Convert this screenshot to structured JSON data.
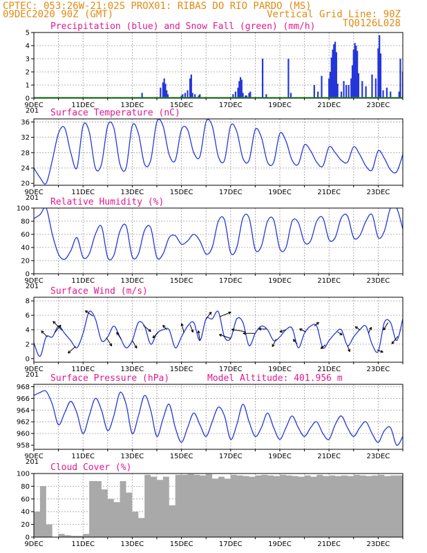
{
  "header": {
    "line1_left": "CPTEC:  053:26W-21:02S  PROX01: RIBAS DO RIO PARDO (MS)",
    "line2_left": "09DEC2020 90Z (GMT)",
    "line2_right": "Vertical Grid Line: 90Z",
    "line3_right": "TQ0126L028"
  },
  "colors": {
    "header": "#e08a14",
    "title": "#e0198c",
    "line": "#2536d8",
    "cloud": "#a9a9a9",
    "snow": "#22aa22"
  },
  "x_axis": {
    "start_day": 9,
    "end_day": 24,
    "labels": [
      "9DEC",
      "11DEC",
      "13DEC",
      "15DEC",
      "17DEC",
      "19DEC",
      "21DEC",
      "23DEC"
    ],
    "cutoff_label": "201"
  },
  "chart_data": [
    {
      "id": "precip",
      "type": "bar",
      "title": "Precipitation (blue) and Snow Fall (green) (mm/h)",
      "ylim": [
        0,
        5
      ],
      "yticks": [
        0,
        1,
        2,
        3,
        4,
        5
      ],
      "series": [
        {
          "name": "Precipitation",
          "values": [
            [
              13.4,
              0.4
            ],
            [
              14.15,
              0.8
            ],
            [
              14.25,
              1.2
            ],
            [
              14.3,
              1.5
            ],
            [
              14.35,
              1.1
            ],
            [
              14.4,
              0.6
            ],
            [
              14.45,
              0.3
            ],
            [
              15.0,
              0.2
            ],
            [
              15.05,
              0.3
            ],
            [
              15.15,
              0.4
            ],
            [
              15.25,
              0.6
            ],
            [
              15.35,
              1.5
            ],
            [
              15.4,
              1.8
            ],
            [
              15.45,
              0.4
            ],
            [
              15.55,
              0.3
            ],
            [
              15.7,
              0.2
            ],
            [
              15.75,
              0.3
            ],
            [
              17.1,
              0.3
            ],
            [
              17.2,
              0.5
            ],
            [
              17.3,
              0.8
            ],
            [
              17.35,
              1.3
            ],
            [
              17.4,
              1.6
            ],
            [
              17.45,
              1.4
            ],
            [
              17.5,
              0.4
            ],
            [
              17.6,
              0.2
            ],
            [
              17.65,
              0.2
            ],
            [
              17.75,
              0.4
            ],
            [
              17.8,
              0.5
            ],
            [
              18.3,
              3.0
            ],
            [
              18.45,
              0.3
            ],
            [
              19.35,
              3.0
            ],
            [
              19.45,
              0.4
            ],
            [
              20.4,
              1.0
            ],
            [
              20.55,
              0.5
            ],
            [
              20.7,
              1.7
            ],
            [
              21.0,
              1.5
            ],
            [
              21.05,
              2.0
            ],
            [
              21.1,
              3.1
            ],
            [
              21.15,
              3.7
            ],
            [
              21.2,
              4.1
            ],
            [
              21.25,
              4.3
            ],
            [
              21.3,
              3.5
            ],
            [
              21.35,
              1.1
            ],
            [
              21.5,
              0.5
            ],
            [
              21.6,
              1.3
            ],
            [
              21.7,
              1.0
            ],
            [
              21.8,
              1.0
            ],
            [
              21.9,
              1.5
            ],
            [
              21.95,
              2.5
            ],
            [
              22.0,
              3.7
            ],
            [
              22.05,
              4.2
            ],
            [
              22.1,
              4.0
            ],
            [
              22.15,
              3.6
            ],
            [
              22.2,
              1.9
            ],
            [
              22.35,
              1.3
            ],
            [
              22.5,
              0.9
            ],
            [
              22.75,
              1.8
            ],
            [
              22.9,
              1.5
            ],
            [
              23.0,
              3.8
            ],
            [
              23.05,
              4.8
            ],
            [
              23.1,
              3.4
            ],
            [
              23.2,
              0.6
            ],
            [
              23.35,
              0.8
            ],
            [
              23.5,
              0.5
            ],
            [
              23.85,
              0.5
            ],
            [
              23.9,
              3.0
            ],
            [
              24.0,
              2.0
            ],
            [
              24.05,
              0.8
            ]
          ]
        },
        {
          "name": "Snow Fall",
          "values": []
        }
      ]
    },
    {
      "id": "temp",
      "type": "line",
      "title": "Surface Temperature (nC)",
      "ylim": [
        19.5,
        36.8
      ],
      "yticks": [
        20,
        24,
        28,
        32,
        36
      ],
      "x": [
        9.0,
        9.25,
        9.5,
        9.75,
        10.0,
        10.25,
        10.5,
        10.75,
        11.0,
        11.25,
        11.5,
        11.75,
        12.0,
        12.25,
        12.5,
        12.75,
        13.0,
        13.25,
        13.5,
        13.75,
        14.0,
        14.25,
        14.5,
        14.75,
        15.0,
        15.25,
        15.5,
        15.75,
        16.0,
        16.25,
        16.5,
        16.75,
        17.0,
        17.25,
        17.5,
        17.75,
        18.0,
        18.25,
        18.5,
        18.75,
        19.0,
        19.25,
        19.5,
        19.75,
        20.0,
        20.25,
        20.5,
        20.75,
        21.0,
        21.25,
        21.5,
        21.75,
        22.0,
        22.25,
        22.5,
        22.75,
        23.0,
        23.25,
        23.5,
        23.75,
        24.0
      ],
      "values": [
        24.0,
        21.5,
        20.0,
        26.0,
        33.0,
        34.5,
        28.0,
        24.0,
        35.0,
        33.5,
        24.0,
        25.0,
        35.0,
        34.5,
        25.0,
        24.0,
        35.0,
        33.0,
        25.0,
        26.0,
        36.0,
        35.0,
        27.5,
        26.0,
        34.0,
        34.0,
        28.0,
        27.0,
        36.0,
        35.0,
        27.0,
        26.0,
        35.0,
        33.5,
        26.5,
        26.0,
        34.0,
        32.0,
        25.5,
        25.5,
        33.0,
        31.0,
        26.0,
        25.0,
        30.0,
        28.5,
        25.5,
        24.5,
        29.5,
        28.0,
        26.0,
        25.5,
        29.5,
        27.5,
        24.5,
        23.5,
        28.5,
        26.5,
        23.5,
        23.0,
        27.5
      ]
    },
    {
      "id": "rh",
      "type": "line",
      "title": "Relative Humidity (%)",
      "ylim": [
        0,
        100
      ],
      "yticks": [
        0,
        20,
        40,
        60,
        80,
        100
      ],
      "x": [
        9.0,
        9.25,
        9.5,
        9.75,
        10.0,
        10.25,
        10.5,
        10.75,
        11.0,
        11.25,
        11.5,
        11.75,
        12.0,
        12.25,
        12.5,
        12.75,
        13.0,
        13.25,
        13.5,
        13.75,
        14.0,
        14.25,
        14.5,
        14.75,
        15.0,
        15.25,
        15.5,
        15.75,
        16.0,
        16.25,
        16.5,
        16.75,
        17.0,
        17.25,
        17.5,
        17.75,
        18.0,
        18.25,
        18.5,
        18.75,
        19.0,
        19.25,
        19.5,
        19.75,
        20.0,
        20.25,
        20.5,
        20.75,
        21.0,
        21.25,
        21.5,
        21.75,
        22.0,
        22.25,
        22.5,
        22.75,
        23.0,
        23.25,
        23.5,
        23.75,
        24.0
      ],
      "values": [
        84.0,
        90.0,
        100.0,
        60.0,
        30.0,
        22.0,
        35.0,
        55.0,
        25.0,
        30.0,
        60.0,
        72.0,
        25.0,
        28.0,
        65.0,
        73.0,
        26.0,
        30.0,
        66.0,
        70.0,
        25.0,
        30.0,
        55.0,
        58.0,
        45.0,
        50.0,
        60.0,
        50.0,
        30.0,
        40.0,
        80.0,
        82.0,
        32.0,
        40.0,
        85.0,
        85.0,
        37.0,
        42.0,
        80.0,
        82.0,
        38.0,
        40.0,
        80.0,
        78.0,
        48.0,
        50.0,
        80.0,
        85.0,
        52.0,
        55.0,
        85.0,
        88.0,
        55.0,
        58.0,
        80.0,
        90.0,
        55.0,
        65.0,
        100.0,
        100.0,
        68.0
      ]
    },
    {
      "id": "wind",
      "type": "line",
      "title": "Surface Wind (m/s)",
      "ylim": [
        -0.5,
        8.5
      ],
      "yticks": [
        0,
        2,
        4,
        6,
        8
      ],
      "x": [
        9.0,
        9.25,
        9.5,
        9.75,
        10.0,
        10.25,
        10.5,
        10.75,
        11.0,
        11.25,
        11.5,
        11.75,
        12.0,
        12.25,
        12.5,
        12.75,
        13.0,
        13.25,
        13.5,
        13.75,
        14.0,
        14.25,
        14.5,
        14.75,
        15.0,
        15.25,
        15.5,
        15.75,
        16.0,
        16.25,
        16.5,
        16.75,
        17.0,
        17.25,
        17.5,
        17.75,
        18.0,
        18.25,
        18.5,
        18.75,
        19.0,
        19.25,
        19.5,
        19.75,
        20.0,
        20.25,
        20.5,
        20.75,
        21.0,
        21.25,
        21.5,
        21.75,
        22.0,
        22.25,
        22.5,
        22.75,
        23.0,
        23.25,
        23.5,
        23.75,
        24.0
      ],
      "values": [
        2.2,
        0.3,
        3.0,
        3.0,
        4.5,
        3.5,
        2.5,
        1.5,
        3.5,
        6.5,
        5.5,
        2.5,
        3.0,
        4.5,
        3.0,
        1.5,
        2.5,
        5.0,
        4.5,
        2.0,
        3.5,
        4.0,
        4.0,
        1.5,
        3.0,
        4.5,
        5.0,
        2.5,
        5.5,
        5.5,
        6.5,
        3.0,
        2.8,
        5.5,
        5.0,
        1.8,
        3.5,
        4.5,
        4.0,
        2.5,
        3.0,
        4.0,
        4.2,
        1.5,
        3.5,
        4.5,
        4.5,
        1.5,
        2.5,
        3.5,
        4.0,
        1.8,
        3.0,
        4.0,
        4.5,
        2.0,
        1.0,
        5.0,
        5.0,
        2.5,
        5.5
      ],
      "vectors": [
        [
          9.55,
          -0.8,
          0.8
        ],
        [
          9.85,
          0.8,
          1.0
        ],
        [
          10.15,
          -1.2,
          1.2
        ],
        [
          10.7,
          -1.0,
          -0.9
        ],
        [
          11.4,
          -1.0,
          0.7
        ],
        [
          11.95,
          0.7,
          -1.1
        ],
        [
          12.55,
          -0.6,
          0.9
        ],
        [
          13.0,
          0.6,
          -1.0
        ],
        [
          13.45,
          1.0,
          -0.8
        ],
        [
          14.05,
          -0.7,
          -0.7
        ],
        [
          14.4,
          -0.5,
          0.6
        ],
        [
          15.1,
          -0.3,
          1.2
        ],
        [
          15.35,
          0.4,
          -1.0
        ],
        [
          15.75,
          -0.2,
          1.3
        ],
        [
          16.0,
          0.7,
          0.9
        ],
        [
          16.55,
          1.5,
          0.6
        ],
        [
          17.0,
          -1.5,
          0.5
        ],
        [
          17.6,
          -1.8,
          0.3
        ],
        [
          18.0,
          -1.6,
          0.0
        ],
        [
          18.45,
          -1.0,
          0.0
        ],
        [
          18.85,
          -0.5,
          -1.0
        ],
        [
          19.25,
          -0.8,
          -0.3
        ],
        [
          19.7,
          -0.5,
          0.6
        ],
        [
          20.05,
          -0.8,
          0.4
        ],
        [
          20.4,
          0.6,
          0.5
        ],
        [
          20.85,
          -0.6,
          -0.5
        ],
        [
          21.35,
          0.6,
          -0.4
        ],
        [
          21.75,
          0.3,
          -0.8
        ],
        [
          22.25,
          -0.6,
          0.4
        ],
        [
          22.6,
          0.4,
          0.8
        ],
        [
          22.95,
          0.8,
          -0.3
        ],
        [
          23.4,
          -0.6,
          -1.0
        ],
        [
          23.8,
          -0.8,
          -1.0
        ]
      ]
    },
    {
      "id": "pres",
      "type": "line",
      "title": "Surface Pressure (hPa)",
      "subtitle": "Model Altitude: 401.956 m",
      "ylim": [
        957.3,
        968.4
      ],
      "yticks": [
        958,
        960,
        962,
        964,
        966,
        968
      ],
      "x": [
        9.0,
        9.25,
        9.5,
        9.75,
        10.0,
        10.25,
        10.5,
        10.75,
        11.0,
        11.25,
        11.5,
        11.75,
        12.0,
        12.25,
        12.5,
        12.75,
        13.0,
        13.25,
        13.5,
        13.75,
        14.0,
        14.25,
        14.5,
        14.75,
        15.0,
        15.25,
        15.5,
        15.75,
        16.0,
        16.25,
        16.5,
        16.75,
        17.0,
        17.25,
        17.5,
        17.75,
        18.0,
        18.25,
        18.5,
        18.75,
        19.0,
        19.25,
        19.5,
        19.75,
        20.0,
        20.25,
        20.5,
        20.75,
        21.0,
        21.25,
        21.5,
        21.75,
        22.0,
        22.25,
        22.5,
        22.75,
        23.0,
        23.25,
        23.5,
        23.75,
        24.0
      ],
      "values": [
        966.5,
        967.0,
        967.2,
        965.0,
        961.5,
        963.5,
        965.5,
        963.5,
        960.0,
        963.0,
        966.0,
        964.0,
        960.5,
        963.0,
        967.0,
        965.0,
        960.0,
        963.0,
        966.5,
        964.0,
        959.5,
        962.5,
        965.0,
        961.0,
        958.5,
        961.0,
        963.5,
        961.5,
        959.5,
        962.0,
        964.5,
        963.0,
        959.0,
        961.5,
        965.0,
        962.0,
        959.5,
        961.0,
        963.5,
        961.0,
        959.0,
        961.0,
        963.0,
        961.0,
        959.5,
        961.0,
        962.0,
        960.0,
        959.0,
        961.5,
        963.0,
        961.0,
        959.5,
        961.0,
        962.0,
        960.0,
        958.5,
        960.5,
        961.0,
        958.0,
        959.5
      ]
    },
    {
      "id": "cloud",
      "type": "bar",
      "title": "Cloud Cover (%)",
      "ylim": [
        0,
        100
      ],
      "yticks": [
        0,
        20,
        40,
        60,
        80,
        100
      ],
      "x": [
        9.0,
        9.25,
        9.5,
        9.75,
        10.0,
        10.25,
        10.5,
        10.75,
        11.0,
        11.25,
        11.5,
        11.75,
        12.0,
        12.25,
        12.5,
        12.75,
        13.0,
        13.25,
        13.5,
        13.75,
        14.0,
        14.25,
        14.5,
        14.75,
        15.0,
        15.25,
        15.5,
        15.75,
        16.0,
        16.25,
        16.5,
        16.75,
        17.0,
        17.25,
        17.5,
        17.75,
        18.0,
        18.25,
        18.5,
        18.75,
        19.0,
        19.25,
        19.5,
        19.75,
        20.0,
        20.25,
        20.5,
        20.75,
        21.0,
        21.25,
        21.5,
        21.75,
        22.0,
        22.25,
        22.5,
        22.75,
        23.0,
        23.25,
        23.5,
        23.75,
        24.0
      ],
      "values": [
        40.0,
        80.0,
        20.0,
        0.0,
        5.0,
        3.0,
        2.0,
        2.0,
        5.0,
        88.0,
        88.0,
        75.0,
        60.0,
        55.0,
        88.0,
        70.0,
        40.0,
        30.0,
        98.0,
        95.0,
        90.0,
        95.0,
        50.0,
        98.0,
        98.0,
        99.0,
        98.0,
        97.0,
        99.0,
        92.0,
        95.0,
        92.0,
        98.0,
        97.0,
        96.0,
        95.0,
        97.0,
        98.0,
        97.0,
        96.0,
        98.0,
        97.0,
        96.0,
        95.0,
        97.0,
        95.0,
        98.0,
        96.0,
        97.0,
        96.0,
        97.0,
        96.0,
        98.0,
        97.0,
        96.0,
        97.0,
        98.0,
        96.0,
        97.0,
        97.0,
        96.0
      ]
    }
  ]
}
